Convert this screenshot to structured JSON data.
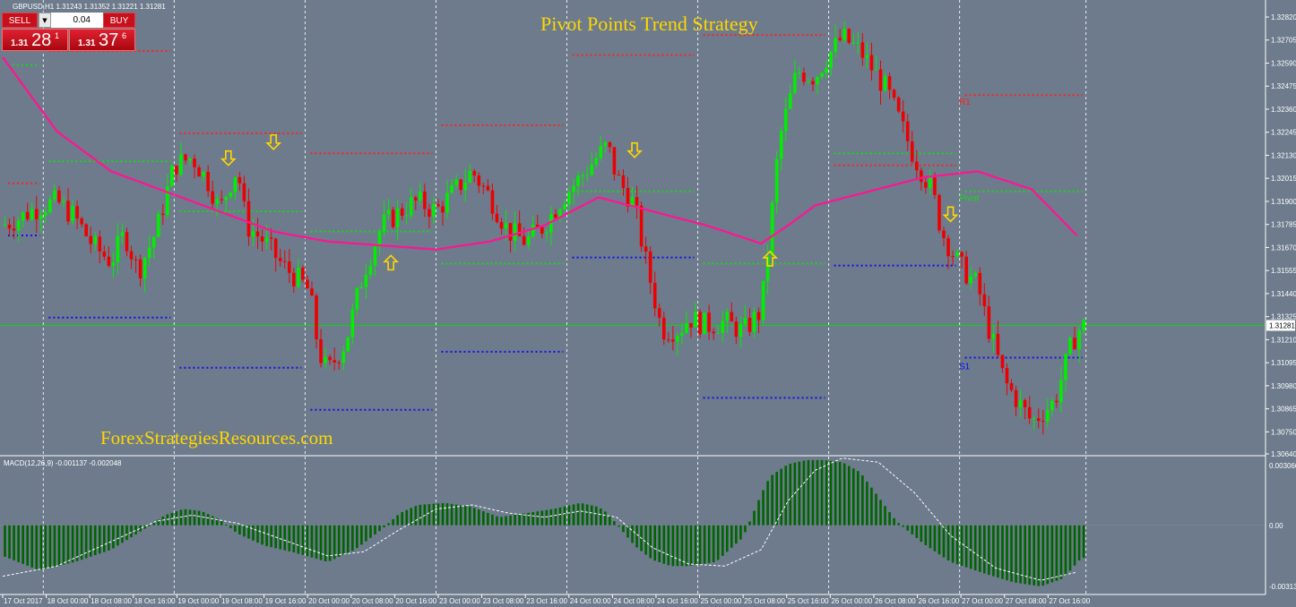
{
  "symbol_info": "GBPUSD,H1  1.31243 1.31352 1.31221 1.31281",
  "trade_panel": {
    "sell_label": "SELL",
    "buy_label": "BUY",
    "lot": "0.04",
    "sell_prefix": "1.31",
    "sell_big": "28",
    "sell_sup": "1",
    "buy_prefix": "1.31",
    "buy_big": "37",
    "buy_sup": "6"
  },
  "colors": {
    "background": "#6d7b8c",
    "bull": "#00ee00",
    "bear": "#ee0000",
    "ma": "#ff1493",
    "resistance": "#ff2020",
    "pivot": "#18d818",
    "support": "#1010ee",
    "arrow": "#ffd700",
    "macd": "#006400",
    "grid": "#ffffff",
    "title": "#ffd700"
  },
  "chart_data": [
    {
      "type": "candlestick",
      "title": "Pivot Points Trend Strategy",
      "watermark": "ForexStrategiesResources.com",
      "ylim": [
        1.3064,
        1.3282
      ],
      "price_ticks": [
        "1.32820",
        "1.32705",
        "1.32590",
        "1.32475",
        "1.32360",
        "1.32245",
        "1.32130",
        "1.32015",
        "1.31900",
        "1.31785",
        "1.31670",
        "1.31555",
        "1.31440",
        "1.31325",
        "1.31210",
        "1.31095",
        "1.30980",
        "1.30865",
        "1.30750",
        "1.30640"
      ],
      "current_price": "1.31281",
      "x_ticks": [
        "17 Oct 2017",
        "18 Oct 00:00",
        "18 Oct 08:00",
        "18 Oct 16:00",
        "19 Oct 00:00",
        "19 Oct 08:00",
        "19 Oct 16:00",
        "20 Oct 00:00",
        "20 Oct 08:00",
        "20 Oct 16:00",
        "23 Oct 00:00",
        "23 Oct 08:00",
        "23 Oct 16:00",
        "24 Oct 00:00",
        "24 Oct 08:00",
        "24 Oct 16:00",
        "25 Oct 00:00",
        "25 Oct 08:00",
        "25 Oct 16:00",
        "26 Oct 00:00",
        "26 Oct 08:00",
        "26 Oct 16:00",
        "27 Oct 00:00",
        "27 Oct 08:00",
        "27 Oct 16:00"
      ],
      "day_separators": [
        "18 Oct 00:00",
        "19 Oct 00:00",
        "20 Oct 00:00",
        "23 Oct 00:00",
        "24 Oct 00:00",
        "25 Oct 00:00",
        "26 Oct 00:00",
        "27 Oct 00:00",
        "end"
      ],
      "close_path_hours": [
        0,
        4,
        6,
        9,
        12,
        16,
        20,
        24,
        27,
        30,
        34,
        38,
        42,
        46,
        48,
        50,
        52,
        54,
        58,
        62,
        66,
        68,
        70,
        72,
        76,
        80,
        84,
        90,
        92,
        96,
        100,
        104,
        108,
        112,
        116,
        120,
        124,
        128,
        132,
        134,
        136,
        138,
        140,
        142,
        146,
        150,
        152,
        156,
        160,
        164,
        168,
        170,
        172,
        176,
        180,
        182,
        186,
        190,
        196,
        202,
        206,
        208,
        212,
        216,
        218,
        222,
        228,
        233,
        237,
        239
      ],
      "close_path_prices": [
        1.3178,
        1.3182,
        1.3185,
        1.3188,
        1.319,
        1.3182,
        1.3168,
        1.316,
        1.3174,
        1.3155,
        1.3175,
        1.3208,
        1.3212,
        1.3198,
        1.3185,
        1.3197,
        1.3207,
        1.3178,
        1.317,
        1.3158,
        1.315,
        1.3145,
        1.3115,
        1.3105,
        1.312,
        1.3155,
        1.3178,
        1.3188,
        1.319,
        1.3185,
        1.3195,
        1.3205,
        1.3192,
        1.3175,
        1.317,
        1.3178,
        1.3192,
        1.3202,
        1.3213,
        1.3218,
        1.3202,
        1.3195,
        1.3188,
        1.3165,
        1.3126,
        1.3126,
        1.3132,
        1.3128,
        1.313,
        1.3125,
        1.3135,
        1.3175,
        1.322,
        1.3255,
        1.3252,
        1.326,
        1.3272,
        1.3265,
        1.3245,
        1.3212,
        1.3195,
        1.3175,
        1.3158,
        1.3148,
        1.313,
        1.31,
        1.308,
        1.309,
        1.312,
        1.3128
      ],
      "ma_hours": [
        0,
        12,
        24,
        36,
        48,
        60,
        72,
        84,
        96,
        108,
        120,
        132,
        144,
        156,
        168,
        174,
        180,
        192,
        204,
        216,
        228,
        238
      ],
      "ma_prices": [
        1.3262,
        1.3225,
        1.3205,
        1.3195,
        1.3185,
        1.3175,
        1.317,
        1.3168,
        1.3166,
        1.317,
        1.3178,
        1.3192,
        1.3185,
        1.3178,
        1.3169,
        1.3178,
        1.3188,
        1.3195,
        1.3202,
        1.3205,
        1.3196,
        1.3173
      ],
      "pivot_levels": [
        {
          "start_hour": 0,
          "end_hour": 9,
          "R1": 1.3199,
          "P": 1.3258,
          "S1": 1.3173
        },
        {
          "start_hour": 9,
          "end_hour": 38,
          "R1": 1.3265,
          "P": 1.321,
          "S1": 1.3132
        },
        {
          "start_hour": 38,
          "end_hour": 67,
          "R1": 1.3224,
          "P": 1.3185,
          "S1": 1.3107
        },
        {
          "start_hour": 67,
          "end_hour": 96,
          "R1": 1.3214,
          "P": 1.3175,
          "S1": 1.3086
        },
        {
          "start_hour": 96,
          "end_hour": 125,
          "R1": 1.3228,
          "P": 1.3159,
          "S1": 1.3115
        },
        {
          "start_hour": 125,
          "end_hour": 154,
          "R1": 1.3263,
          "P": 1.3195,
          "S1": 1.3162
        },
        {
          "start_hour": 154,
          "end_hour": 183,
          "R1": 1.3273,
          "P": 1.3159,
          "S1": 1.3092
        },
        {
          "start_hour": 183,
          "end_hour": 212,
          "R1": 1.3208,
          "P": 1.3214,
          "S1": 1.3158
        },
        {
          "start_hour": 212,
          "end_hour": 240,
          "R1": 1.3243,
          "P": 1.3195,
          "S1": 1.3112
        }
      ],
      "level_labels": [
        {
          "text": "R1",
          "price": 1.324
        },
        {
          "text": "Pivot",
          "price": 1.3192
        },
        {
          "text": "S1",
          "price": 1.3108
        }
      ],
      "arrows": [
        {
          "hour": 50,
          "price": 1.3208,
          "dir": "down"
        },
        {
          "hour": 60,
          "price": 1.3216,
          "dir": "down"
        },
        {
          "hour": 86,
          "price": 1.3163,
          "dir": "up"
        },
        {
          "hour": 140,
          "price": 1.3212,
          "dir": "down"
        },
        {
          "hour": 170,
          "price": 1.3165,
          "dir": "up"
        },
        {
          "hour": 210,
          "price": 1.318,
          "dir": "down"
        }
      ]
    },
    {
      "type": "histogram",
      "indicator_label": "MACD(12,26,9) -0.001137 -0.002048",
      "ylim": [
        -0.003131,
        0.003066
      ],
      "y_ticks": [
        "0.003066",
        "0.00",
        "-0.003131"
      ],
      "hist_hours": [
        0,
        8,
        16,
        24,
        32,
        36,
        40,
        44,
        48,
        52,
        58,
        64,
        72,
        78,
        84,
        88,
        92,
        98,
        104,
        110,
        116,
        122,
        128,
        132,
        134,
        140,
        144,
        148,
        152,
        158,
        164,
        168,
        170,
        174,
        178,
        182,
        186,
        190,
        194,
        198,
        204,
        210,
        218,
        224,
        230,
        235,
        239
      ],
      "hist_values": [
        -0.0015,
        -0.0022,
        -0.0018,
        -0.0012,
        -0.0001,
        0.0005,
        0.0008,
        0.0007,
        0.0003,
        -0.0004,
        -0.001,
        -0.0013,
        -0.0018,
        -0.0012,
        -0.0002,
        0.0006,
        0.001,
        0.0011,
        0.0009,
        0.0004,
        0.0006,
        0.0008,
        0.0011,
        0.0009,
        0.0006,
        -0.001,
        -0.0017,
        -0.002,
        -0.002,
        -0.0018,
        -0.0006,
        0.0015,
        0.0024,
        0.003,
        0.0032,
        0.0032,
        0.0031,
        0.0026,
        0.0014,
        0.0002,
        -0.0009,
        -0.0018,
        -0.0024,
        -0.0028,
        -0.003,
        -0.0026,
        -0.0016
      ],
      "signal_hours": [
        0,
        12,
        24,
        34,
        42,
        52,
        62,
        72,
        80,
        88,
        96,
        104,
        112,
        120,
        128,
        136,
        144,
        152,
        160,
        168,
        174,
        180,
        186,
        194,
        202,
        210,
        220,
        230,
        238
      ],
      "signal_values": [
        -0.0025,
        -0.002,
        -0.0008,
        0.0002,
        0.0005,
        0.0001,
        -0.0007,
        -0.0015,
        -0.0013,
        -0.0002,
        0.0008,
        0.001,
        0.0006,
        0.0004,
        0.0007,
        0.0004,
        -0.0011,
        -0.0019,
        -0.002,
        -0.0012,
        0.0012,
        0.0027,
        0.0033,
        0.0031,
        0.0016,
        -0.0005,
        -0.0021,
        -0.0027,
        -0.0023
      ]
    }
  ]
}
